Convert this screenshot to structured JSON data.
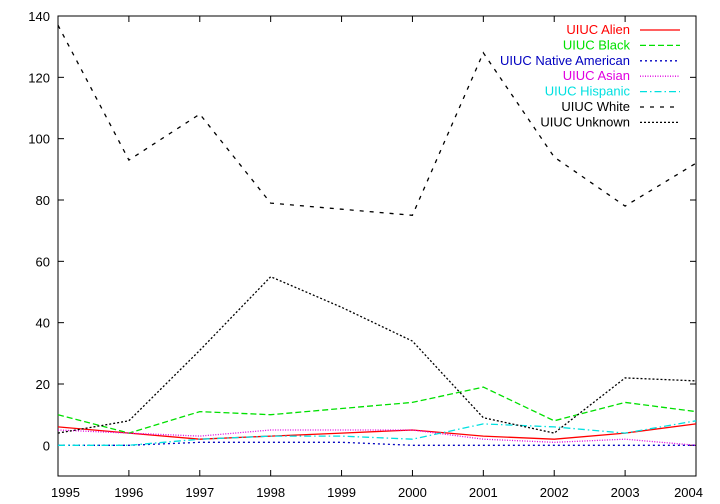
{
  "chart_data": {
    "type": "line",
    "title": "",
    "xlabel": "",
    "ylabel": "",
    "x": [
      1995,
      1996,
      1997,
      1998,
      1999,
      2000,
      2001,
      2002,
      2003,
      2004
    ],
    "xlim": [
      1995,
      2004
    ],
    "ylim": [
      -10,
      140
    ],
    "yticks": [
      0,
      20,
      40,
      60,
      80,
      100,
      120,
      140
    ],
    "xticks": [
      1995,
      1996,
      1997,
      1998,
      1999,
      2000,
      2001,
      2002,
      2003,
      2004
    ],
    "grid": false,
    "legend_position": "top-right",
    "series": [
      {
        "name": "UIUC Alien",
        "color": "#ff0000",
        "dash": "solid",
        "values": [
          6,
          4,
          2,
          3,
          4,
          5,
          3,
          2,
          4,
          7
        ]
      },
      {
        "name": "UIUC Black",
        "color": "#00e000",
        "dash": "dashed",
        "values": [
          10,
          4,
          11,
          10,
          12,
          14,
          19,
          8,
          14,
          11
        ]
      },
      {
        "name": "UIUC Native American",
        "color": "#0000c0",
        "dash": "dotted",
        "values": [
          0,
          0,
          1,
          1,
          1,
          0,
          0,
          0,
          0,
          0
        ]
      },
      {
        "name": "UIUC Asian",
        "color": "#e000e0",
        "dash": "fine-dotted",
        "values": [
          5,
          4,
          3,
          5,
          5,
          5,
          2,
          1,
          2,
          0
        ]
      },
      {
        "name": "UIUC Hispanic",
        "color": "#00e0e0",
        "dash": "dash-dot",
        "values": [
          0,
          0,
          2,
          3,
          3,
          2,
          7,
          6,
          4,
          8
        ]
      },
      {
        "name": "UIUC White",
        "color": "#000000",
        "dash": "sparse-dashed",
        "values": [
          137,
          93,
          108,
          79,
          77,
          75,
          128,
          94,
          78,
          92
        ]
      },
      {
        "name": "UIUC Unknown",
        "color": "#000000",
        "dash": "dense-dotted",
        "values": [
          4,
          8,
          31,
          55,
          45,
          34,
          9,
          4,
          22,
          21
        ]
      }
    ]
  }
}
